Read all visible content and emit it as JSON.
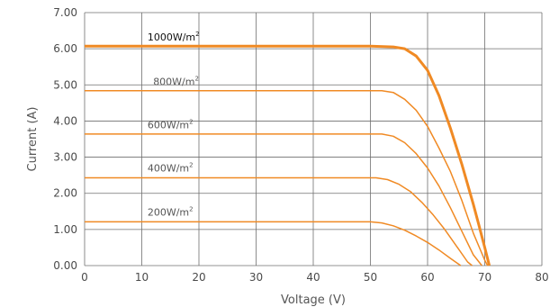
{
  "chart_data": {
    "type": "line",
    "xlabel": "Voltage (V)",
    "ylabel": "Current (A)",
    "xlim": [
      0,
      80
    ],
    "ylim": [
      0,
      7
    ],
    "x_ticks": [
      "0",
      "10",
      "20",
      "30",
      "40",
      "50",
      "60",
      "70",
      "80"
    ],
    "y_ticks": [
      "0.00",
      "1.00",
      "2.00",
      "3.00",
      "4.00",
      "5.00",
      "6.00",
      "7.00"
    ],
    "grid": true,
    "series_color": "#f08a24",
    "series": [
      {
        "name": "1000W/m²",
        "emphasis": true,
        "points": [
          [
            0,
            6.07
          ],
          [
            50,
            6.07
          ],
          [
            54,
            6.05
          ],
          [
            56,
            6.0
          ],
          [
            58,
            5.8
          ],
          [
            60,
            5.4
          ],
          [
            62,
            4.7
          ],
          [
            64,
            3.8
          ],
          [
            66,
            2.8
          ],
          [
            68,
            1.7
          ],
          [
            69,
            1.1
          ],
          [
            70,
            0.5
          ],
          [
            70.8,
            0
          ]
        ]
      },
      {
        "name": "800W/m²",
        "points": [
          [
            0,
            4.84
          ],
          [
            52,
            4.84
          ],
          [
            54,
            4.79
          ],
          [
            56,
            4.6
          ],
          [
            58,
            4.3
          ],
          [
            60,
            3.85
          ],
          [
            62,
            3.25
          ],
          [
            64,
            2.6
          ],
          [
            66,
            1.8
          ],
          [
            68,
            0.9
          ],
          [
            70,
            0.15
          ],
          [
            70.5,
            0
          ]
        ]
      },
      {
        "name": "600W/m²",
        "points": [
          [
            0,
            3.64
          ],
          [
            52,
            3.64
          ],
          [
            54,
            3.58
          ],
          [
            56,
            3.4
          ],
          [
            58,
            3.1
          ],
          [
            60,
            2.7
          ],
          [
            62,
            2.2
          ],
          [
            64,
            1.6
          ],
          [
            66,
            0.95
          ],
          [
            68,
            0.3
          ],
          [
            69.5,
            0
          ]
        ]
      },
      {
        "name": "400W/m²",
        "points": [
          [
            0,
            2.43
          ],
          [
            51,
            2.43
          ],
          [
            53,
            2.38
          ],
          [
            55,
            2.25
          ],
          [
            57,
            2.05
          ],
          [
            59,
            1.75
          ],
          [
            61,
            1.4
          ],
          [
            63,
            1.0
          ],
          [
            65,
            0.55
          ],
          [
            67,
            0.1
          ],
          [
            67.8,
            0
          ]
        ]
      },
      {
        "name": "200W/m²",
        "points": [
          [
            0,
            1.21
          ],
          [
            50,
            1.21
          ],
          [
            52,
            1.18
          ],
          [
            54,
            1.1
          ],
          [
            56,
            0.98
          ],
          [
            58,
            0.82
          ],
          [
            60,
            0.64
          ],
          [
            62,
            0.43
          ],
          [
            64,
            0.2
          ],
          [
            65.8,
            0
          ]
        ]
      }
    ],
    "annotations": [
      {
        "text": "1000W/m",
        "sup": "2",
        "x": 11,
        "y": 6.18
      },
      {
        "text": "800W/m",
        "sup": "2",
        "x": 12,
        "y": 4.95
      },
      {
        "text": "600W/m",
        "sup": "2",
        "x": 11,
        "y": 3.75
      },
      {
        "text": "400W/m",
        "sup": "2",
        "x": 11,
        "y": 2.55
      },
      {
        "text": "200W/m",
        "sup": "2",
        "x": 11,
        "y": 1.33
      }
    ]
  }
}
